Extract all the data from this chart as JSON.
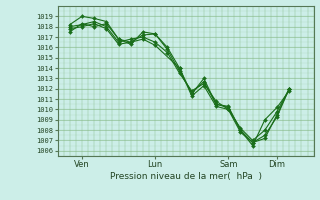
{
  "bg_color": "#cceee8",
  "grid_color": "#88bb88",
  "line_color": "#1a6e1a",
  "marker_color": "#1a6e1a",
  "ylabel_values": [
    1006,
    1007,
    1008,
    1009,
    1010,
    1011,
    1012,
    1013,
    1014,
    1015,
    1016,
    1017,
    1018,
    1019
  ],
  "xtick_labels": [
    "Ven",
    "Lun",
    "Sam",
    "Dim"
  ],
  "xtick_positions": [
    1,
    4,
    7,
    9
  ],
  "xlabel": "Pression niveau de la mer(  hPa  )",
  "ylim": [
    1005.5,
    1020.0
  ],
  "xlim": [
    0.0,
    10.5
  ],
  "series": [
    {
      "x": [
        0.5,
        1.0,
        1.5,
        2.0,
        2.5,
        3.0,
        3.5,
        4.0,
        4.5,
        5.0,
        5.5,
        6.0,
        6.5,
        7.0,
        7.5,
        8.0,
        8.5,
        9.0,
        9.5
      ],
      "y": [
        1017.5,
        1018.3,
        1018.0,
        1018.3,
        1016.8,
        1016.5,
        1017.2,
        1017.3,
        1015.8,
        1013.7,
        1011.6,
        1012.7,
        1010.5,
        1010.3,
        1008.0,
        1006.5,
        1009.0,
        1010.2,
        1011.8
      ]
    },
    {
      "x": [
        0.5,
        1.0,
        1.5,
        2.0,
        2.5,
        3.0,
        3.5,
        4.0,
        4.5,
        5.0,
        5.5,
        6.0,
        6.5,
        7.0,
        7.5,
        8.0,
        8.5,
        9.0,
        9.5
      ],
      "y": [
        1018.2,
        1019.0,
        1018.8,
        1018.5,
        1016.8,
        1016.3,
        1017.5,
        1017.3,
        1016.0,
        1014.0,
        1011.5,
        1013.0,
        1010.5,
        1010.2,
        1008.0,
        1006.8,
        1007.5,
        1009.3,
        1012.0
      ]
    },
    {
      "x": [
        0.5,
        1.0,
        1.5,
        2.0,
        2.5,
        3.0,
        3.5,
        4.0,
        4.5,
        5.0,
        5.5,
        6.0,
        6.5,
        7.0,
        7.5,
        8.0,
        8.5,
        9.0,
        9.5
      ],
      "y": [
        1018.0,
        1018.2,
        1018.5,
        1018.0,
        1016.5,
        1016.8,
        1017.0,
        1016.5,
        1015.5,
        1013.5,
        1011.8,
        1012.5,
        1010.8,
        1010.0,
        1008.2,
        1007.0,
        1008.0,
        1009.8,
        1012.0
      ]
    },
    {
      "x": [
        0.5,
        1.0,
        1.5,
        2.0,
        2.5,
        3.0,
        3.5,
        4.0,
        5.0,
        5.5,
        6.0,
        6.5,
        7.0,
        7.5,
        8.0,
        8.5,
        9.0,
        9.5
      ],
      "y": [
        1017.8,
        1018.0,
        1018.3,
        1017.8,
        1016.3,
        1016.5,
        1016.8,
        1016.2,
        1014.0,
        1011.3,
        1012.3,
        1010.3,
        1010.0,
        1007.8,
        1006.8,
        1007.2,
        1009.5,
        1012.0
      ]
    }
  ]
}
